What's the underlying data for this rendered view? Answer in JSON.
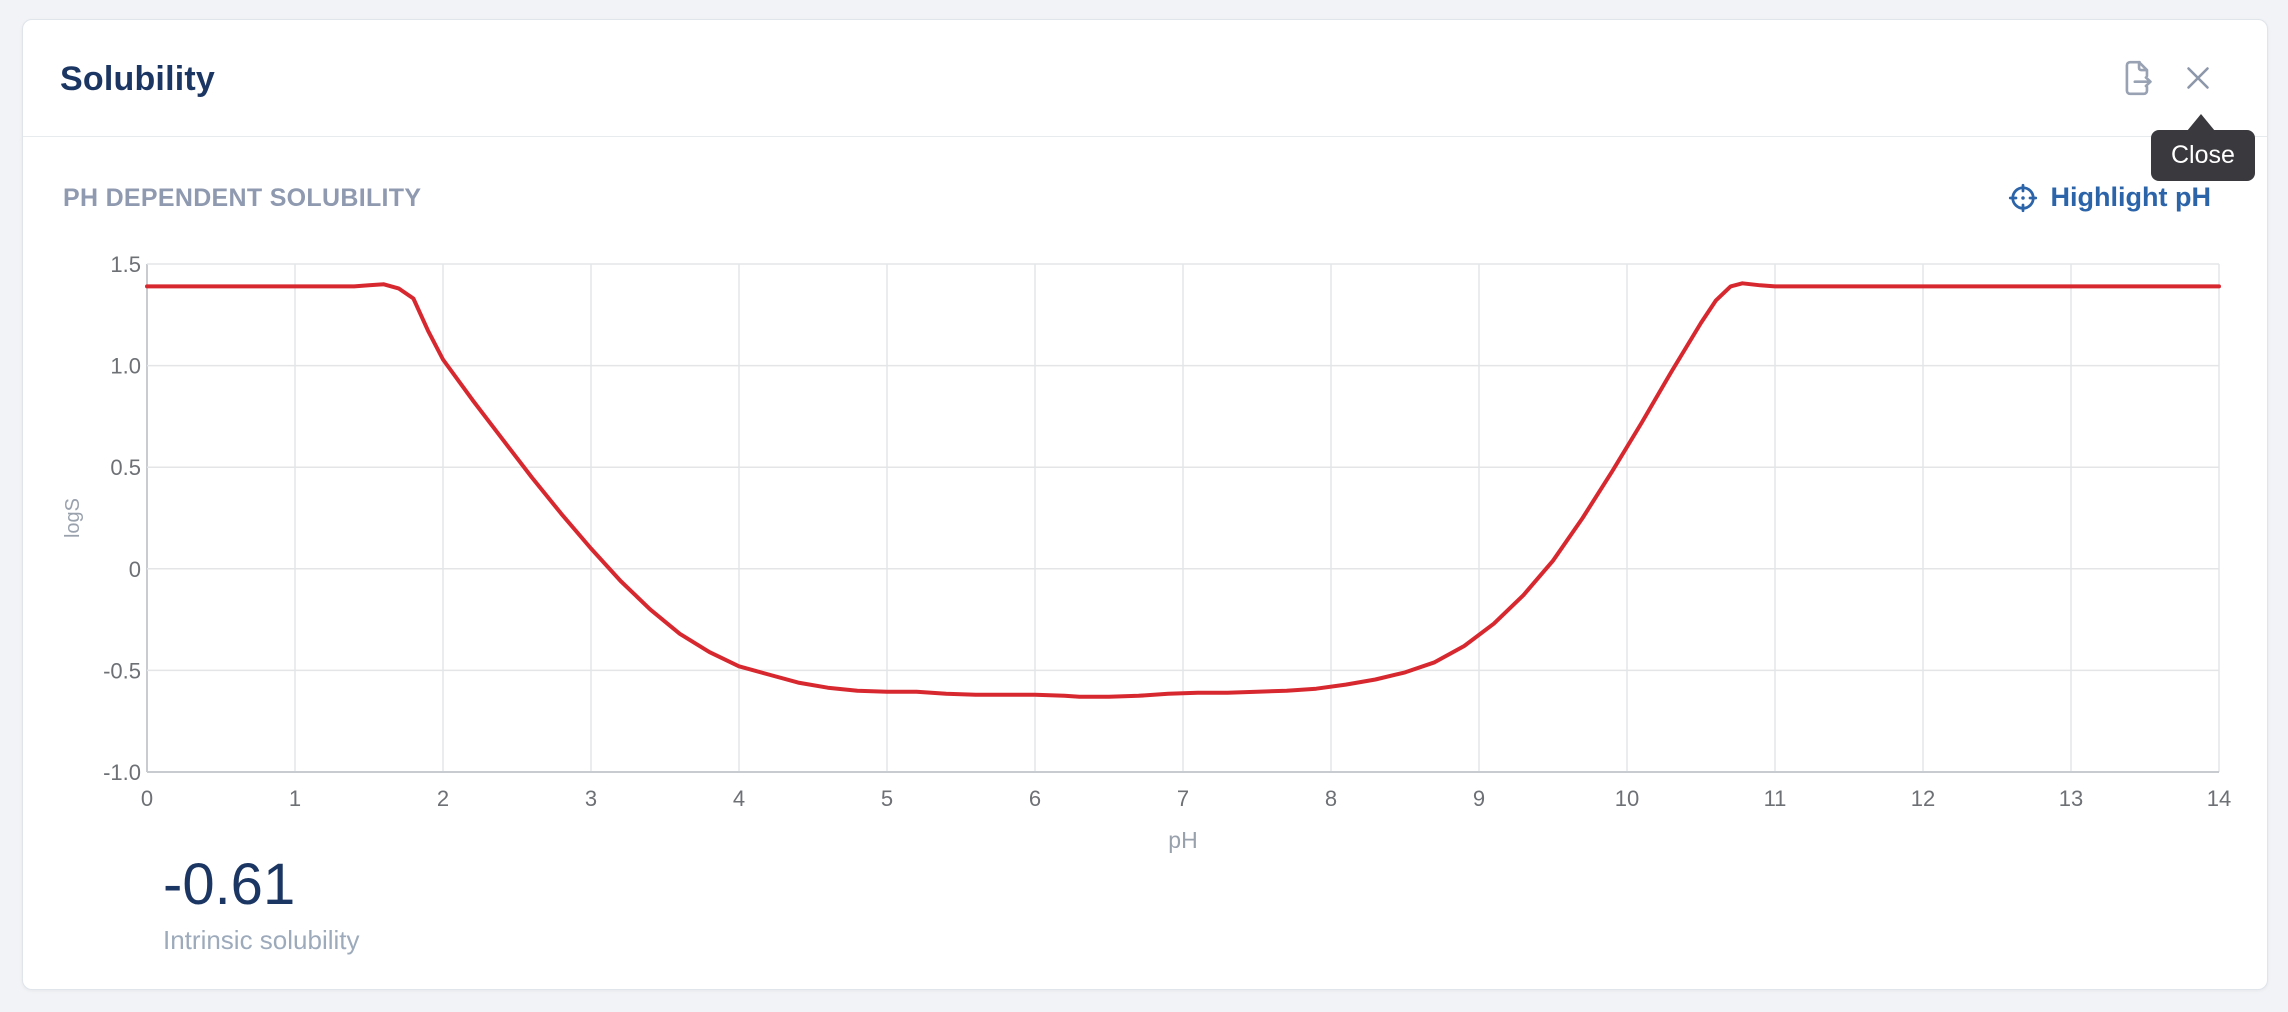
{
  "card": {
    "header": {
      "title": "Solubility"
    },
    "tooltip": {
      "label": "Close"
    },
    "section": {
      "heading": "PH DEPENDENT SOLUBILITY",
      "highlight_ph_label": "Highlight pH"
    },
    "metric": {
      "value": "-0.61",
      "label": "Intrinsic solubility"
    }
  },
  "icons": [
    "export-icon",
    "close-icon",
    "crosshair-icon"
  ],
  "colors": {
    "title_navy": "#1c3663",
    "link_blue": "#2c64a9",
    "muted_blue_gray": "#8f9ab0",
    "accent_red": "#d7282f",
    "icon_gray": "#98a2b3",
    "tooltip_bg": "#3a3a3e",
    "tick_gray": "#6d7075",
    "axis_title_gray": "#99a1ad"
  },
  "chart_data": {
    "type": "line",
    "title": "PH DEPENDENT SOLUBILITY",
    "xlabel": "pH",
    "ylabel": "logS",
    "xlim": [
      0,
      14
    ],
    "ylim": [
      -1.0,
      1.5
    ],
    "grid": true,
    "legend": false,
    "x_ticks": [
      {
        "v": 0,
        "label": "0"
      },
      {
        "v": 1,
        "label": "1"
      },
      {
        "v": 2,
        "label": "2"
      },
      {
        "v": 3,
        "label": "3"
      },
      {
        "v": 4,
        "label": "4"
      },
      {
        "v": 5,
        "label": "5"
      },
      {
        "v": 6,
        "label": "6"
      },
      {
        "v": 7,
        "label": "7"
      },
      {
        "v": 8,
        "label": "8"
      },
      {
        "v": 9,
        "label": "9"
      },
      {
        "v": 10,
        "label": "10"
      },
      {
        "v": 11,
        "label": "11"
      },
      {
        "v": 12,
        "label": "12"
      },
      {
        "v": 13,
        "label": "13"
      },
      {
        "v": 14,
        "label": "14"
      }
    ],
    "y_ticks": [
      {
        "v": 1.5,
        "label": "1.5"
      },
      {
        "v": 1.0,
        "label": "1.0"
      },
      {
        "v": 0.5,
        "label": "0.5"
      },
      {
        "v": 0,
        "label": "0"
      },
      {
        "v": -0.5,
        "label": "-0.5"
      },
      {
        "v": -1.0,
        "label": "-1.0"
      }
    ],
    "intrinsic_solubility": -0.61,
    "series": [
      {
        "name": "logS",
        "color": "#d7282f",
        "points": [
          [
            0,
            1.39
          ],
          [
            0.25,
            1.39
          ],
          [
            0.5,
            1.39
          ],
          [
            0.75,
            1.39
          ],
          [
            1.0,
            1.39
          ],
          [
            1.2,
            1.39
          ],
          [
            1.4,
            1.39
          ],
          [
            1.5,
            1.395
          ],
          [
            1.6,
            1.4
          ],
          [
            1.7,
            1.38
          ],
          [
            1.8,
            1.33
          ],
          [
            1.9,
            1.17
          ],
          [
            2.0,
            1.03
          ],
          [
            2.2,
            0.83
          ],
          [
            2.4,
            0.64
          ],
          [
            2.6,
            0.45
          ],
          [
            2.8,
            0.27
          ],
          [
            3.0,
            0.1
          ],
          [
            3.2,
            -0.06
          ],
          [
            3.4,
            -0.2
          ],
          [
            3.6,
            -0.32
          ],
          [
            3.8,
            -0.41
          ],
          [
            4.0,
            -0.48
          ],
          [
            4.2,
            -0.52
          ],
          [
            4.4,
            -0.56
          ],
          [
            4.6,
            -0.585
          ],
          [
            4.8,
            -0.6
          ],
          [
            5.0,
            -0.605
          ],
          [
            5.2,
            -0.605
          ],
          [
            5.4,
            -0.615
          ],
          [
            5.6,
            -0.62
          ],
          [
            5.8,
            -0.62
          ],
          [
            6.0,
            -0.62
          ],
          [
            6.2,
            -0.625
          ],
          [
            6.3,
            -0.63
          ],
          [
            6.5,
            -0.63
          ],
          [
            6.7,
            -0.625
          ],
          [
            6.9,
            -0.615
          ],
          [
            7.1,
            -0.61
          ],
          [
            7.3,
            -0.61
          ],
          [
            7.5,
            -0.605
          ],
          [
            7.7,
            -0.6
          ],
          [
            7.9,
            -0.59
          ],
          [
            8.1,
            -0.57
          ],
          [
            8.3,
            -0.545
          ],
          [
            8.5,
            -0.51
          ],
          [
            8.7,
            -0.46
          ],
          [
            8.9,
            -0.38
          ],
          [
            9.1,
            -0.27
          ],
          [
            9.3,
            -0.13
          ],
          [
            9.5,
            0.04
          ],
          [
            9.7,
            0.25
          ],
          [
            9.9,
            0.48
          ],
          [
            10.1,
            0.72
          ],
          [
            10.3,
            0.97
          ],
          [
            10.5,
            1.21
          ],
          [
            10.6,
            1.32
          ],
          [
            10.7,
            1.39
          ],
          [
            10.78,
            1.405
          ],
          [
            10.9,
            1.395
          ],
          [
            11.0,
            1.39
          ],
          [
            11.5,
            1.39
          ],
          [
            12.0,
            1.39
          ],
          [
            12.5,
            1.39
          ],
          [
            13.0,
            1.39
          ],
          [
            13.5,
            1.39
          ],
          [
            14.0,
            1.39
          ]
        ]
      }
    ]
  }
}
